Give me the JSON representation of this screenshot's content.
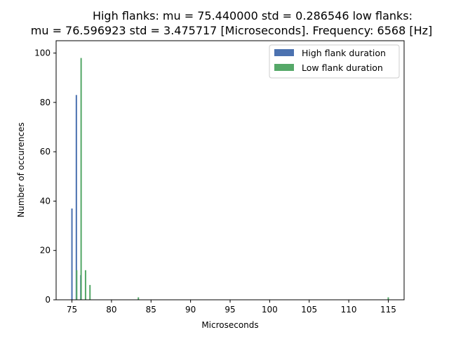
{
  "chart_data": {
    "type": "bar",
    "title_line1": "High flanks: mu = 75.440000  std = 0.286546  low flanks:",
    "title_line2": "mu = 76.596923  std = 3.475717  [Microseconds]. Frequency: 6568 [Hz]",
    "xlabel": "Microseconds",
    "ylabel": "Number of occurences",
    "xlim": [
      73.0,
      117.0
    ],
    "ylim": [
      0,
      105
    ],
    "xticks": [
      75,
      80,
      85,
      90,
      95,
      100,
      105,
      110,
      115
    ],
    "yticks": [
      0,
      20,
      40,
      60,
      80,
      100
    ],
    "bar_width": 0.18,
    "legend_position": "top-right",
    "series": [
      {
        "name": "High flank duration",
        "color": "#4c72b0",
        "x": [
          75.0,
          75.56,
          76.12
        ],
        "values": [
          37,
          83,
          10
        ]
      },
      {
        "name": "Low flank duration",
        "color": "#55a868",
        "x": [
          75.6,
          76.16,
          76.72,
          77.28,
          83.4,
          115.0
        ],
        "values": [
          12,
          98,
          12,
          6,
          1,
          1
        ]
      }
    ]
  }
}
